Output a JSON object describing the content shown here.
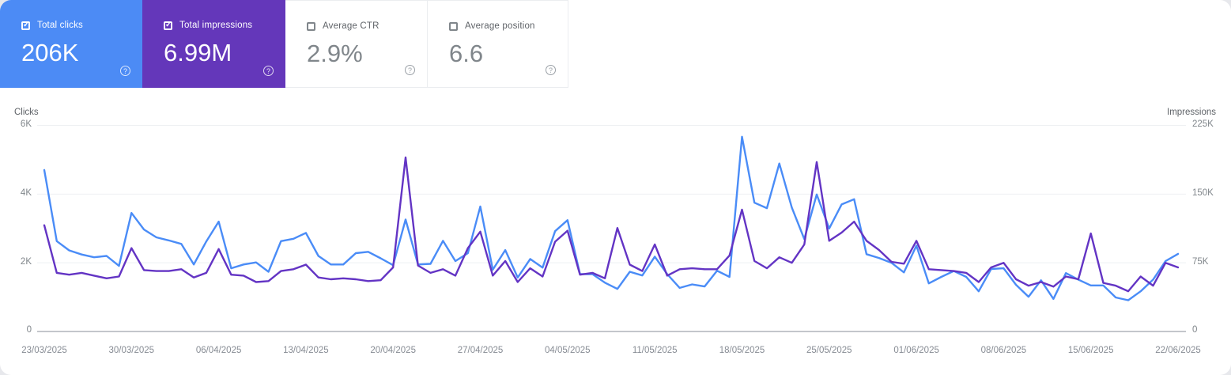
{
  "cards": [
    {
      "label": "Total clicks",
      "value": "206K",
      "selected": true,
      "color": "#4c8bf5"
    },
    {
      "label": "Total impressions",
      "value": "6.99M",
      "selected": true,
      "color": "#6437ba"
    },
    {
      "label": "Average CTR",
      "value": "2.9%",
      "selected": false,
      "color": "#ffffff"
    },
    {
      "label": "Average position",
      "value": "6.6",
      "selected": false,
      "color": "#ffffff"
    }
  ],
  "chart": {
    "left_axis": {
      "title": "Clicks",
      "ticks": [
        "6K",
        "4K",
        "2K",
        "0"
      ],
      "max": 6000
    },
    "right_axis": {
      "title": "Impressions",
      "ticks": [
        "225K",
        "150K",
        "75K",
        "0"
      ],
      "max": 225000
    },
    "x_tick_labels": [
      "23/03/2025",
      "30/03/2025",
      "06/04/2025",
      "13/04/2025",
      "20/04/2025",
      "27/04/2025",
      "04/05/2025",
      "11/05/2025",
      "18/05/2025",
      "25/05/2025",
      "01/06/2025",
      "08/06/2025",
      "15/06/2025",
      "22/06/2025"
    ]
  },
  "chart_data": {
    "type": "line",
    "x_start": "23/03/2025",
    "x_end": "22/06/2025",
    "x_interval": "daily",
    "x_tick_every_days": 7,
    "grid": "horizontal",
    "legend": "none",
    "series": [
      {
        "name": "Total clicks",
        "axis": "left",
        "axis_range": [
          0,
          6000
        ],
        "color": "#4a8cf7",
        "values": [
          4700,
          2630,
          2360,
          2240,
          2160,
          2200,
          1910,
          3450,
          2970,
          2740,
          2650,
          2550,
          1950,
          2620,
          3200,
          1840,
          1950,
          2010,
          1740,
          2630,
          2700,
          2870,
          2200,
          1950,
          1950,
          2280,
          2320,
          2130,
          1930,
          3260,
          1950,
          1970,
          2640,
          2050,
          2280,
          3640,
          1800,
          2370,
          1570,
          2110,
          1860,
          2920,
          3240,
          1670,
          1670,
          1420,
          1240,
          1740,
          1630,
          2180,
          1670,
          1270,
          1370,
          1310,
          1770,
          1590,
          5670,
          3750,
          3590,
          4890,
          3610,
          2690,
          3990,
          3000,
          3700,
          3850,
          2250,
          2140,
          2000,
          1720,
          2500,
          1400,
          1590,
          1760,
          1590,
          1170,
          1820,
          1840,
          1360,
          1010,
          1490,
          950,
          1700,
          1510,
          1340,
          1340,
          990,
          910,
          1170,
          1510,
          2050,
          2260
        ]
      },
      {
        "name": "Total impressions",
        "axis": "right",
        "axis_range": [
          0,
          225000
        ],
        "color": "#6334c4",
        "values": [
          116000,
          64000,
          62000,
          64000,
          61000,
          58000,
          60000,
          91000,
          67000,
          66000,
          66000,
          68000,
          59000,
          64000,
          90000,
          62000,
          61000,
          54000,
          55000,
          66000,
          68000,
          73000,
          59000,
          57000,
          58000,
          57000,
          55000,
          56000,
          70000,
          190000,
          72000,
          64000,
          68000,
          61000,
          91000,
          109000,
          61000,
          77000,
          54000,
          69000,
          60000,
          98000,
          110000,
          62000,
          64000,
          58000,
          113000,
          73000,
          66000,
          95000,
          61000,
          68000,
          69000,
          68000,
          68000,
          83000,
          133000,
          77000,
          69000,
          81000,
          75000,
          95000,
          185000,
          99000,
          108000,
          120000,
          99000,
          89000,
          76000,
          74000,
          99000,
          68000,
          67000,
          66000,
          64000,
          54000,
          70000,
          75000,
          57000,
          50000,
          54000,
          49000,
          60000,
          57000,
          107000,
          53000,
          50000,
          44000,
          60000,
          50000,
          75000,
          70000
        ]
      }
    ]
  }
}
